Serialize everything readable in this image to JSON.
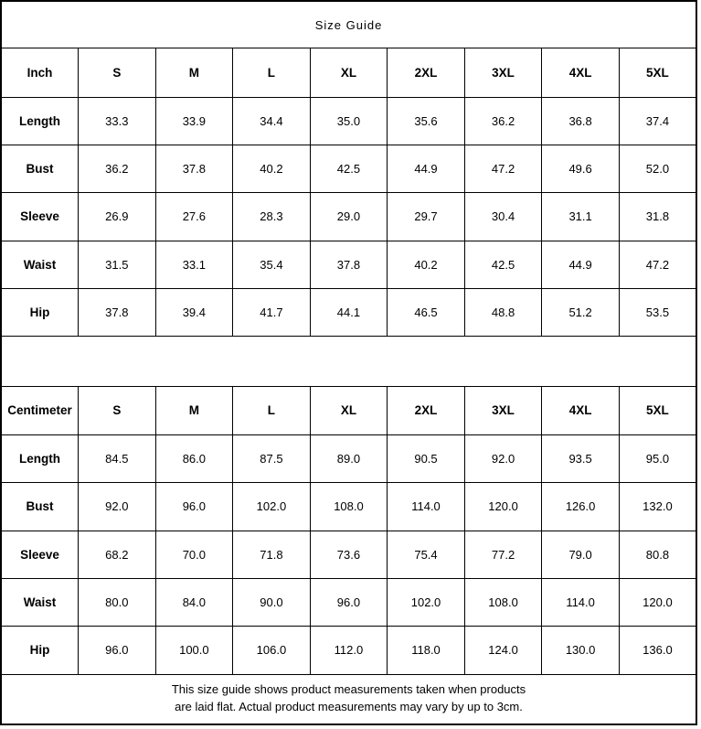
{
  "title": "Size Guide",
  "sizes": [
    "S",
    "M",
    "L",
    "XL",
    "2XL",
    "3XL",
    "4XL",
    "5XL"
  ],
  "colors": {
    "border": "#000000",
    "text": "#000000",
    "background": "#ffffff"
  },
  "inch_table": {
    "unit_label": "Inch",
    "rows": [
      {
        "label": "Length",
        "values": [
          "33.3",
          "33.9",
          "34.4",
          "35.0",
          "35.6",
          "36.2",
          "36.8",
          "37.4"
        ]
      },
      {
        "label": "Bust",
        "values": [
          "36.2",
          "37.8",
          "40.2",
          "42.5",
          "44.9",
          "47.2",
          "49.6",
          "52.0"
        ]
      },
      {
        "label": "Sleeve",
        "values": [
          "26.9",
          "27.6",
          "28.3",
          "29.0",
          "29.7",
          "30.4",
          "31.1",
          "31.8"
        ]
      },
      {
        "label": "Waist",
        "values": [
          "31.5",
          "33.1",
          "35.4",
          "37.8",
          "40.2",
          "42.5",
          "44.9",
          "47.2"
        ]
      },
      {
        "label": "Hip",
        "values": [
          "37.8",
          "39.4",
          "41.7",
          "44.1",
          "46.5",
          "48.8",
          "51.2",
          "53.5"
        ]
      }
    ]
  },
  "cm_table": {
    "unit_label": "Centimeter",
    "rows": [
      {
        "label": "Length",
        "values": [
          "84.5",
          "86.0",
          "87.5",
          "89.0",
          "90.5",
          "92.0",
          "93.5",
          "95.0"
        ]
      },
      {
        "label": "Bust",
        "values": [
          "92.0",
          "96.0",
          "102.0",
          "108.0",
          "114.0",
          "120.0",
          "126.0",
          "132.0"
        ]
      },
      {
        "label": "Sleeve",
        "values": [
          "68.2",
          "70.0",
          "71.8",
          "73.6",
          "75.4",
          "77.2",
          "79.0",
          "80.8"
        ]
      },
      {
        "label": "Waist",
        "values": [
          "80.0",
          "84.0",
          "90.0",
          "96.0",
          "102.0",
          "108.0",
          "114.0",
          "120.0"
        ]
      },
      {
        "label": "Hip",
        "values": [
          "96.0",
          "100.0",
          "106.0",
          "112.0",
          "118.0",
          "124.0",
          "130.0",
          "136.0"
        ]
      }
    ]
  },
  "footer": {
    "line1": "This size guide shows product measurements taken when products",
    "line2": "are laid flat. Actual product measurements may vary by up to 3cm."
  }
}
